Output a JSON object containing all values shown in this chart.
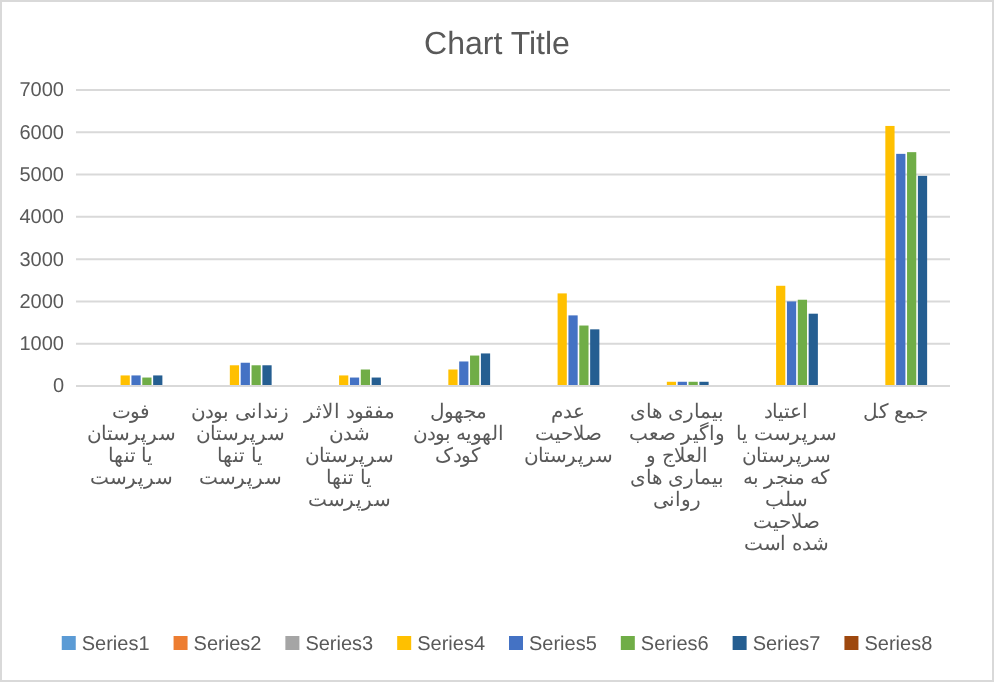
{
  "chart_data": {
    "type": "bar",
    "title": "Chart Title",
    "categories": [
      "فوت سرپرستان یا تنها سرپرست",
      "زندانی بودن سرپرستان یا تنها سرپرست",
      "مفقود الاثر شدن سرپرستان یا تنها سرپرست",
      "مجهول الهویه بودن کودک",
      "عدم صلاحیت سرپرستان",
      "بیماری های واگیر صعب العلاج و بیماری های روانی",
      "اعتیاد سرپرست یا سرپرستان که منجر به سلب صلاحیت شده است",
      "جمع کل"
    ],
    "series": [
      {
        "name": "Series1",
        "color": "#5b9bd5",
        "values": [
          null,
          null,
          null,
          null,
          null,
          null,
          null,
          null
        ]
      },
      {
        "name": "Series2",
        "color": "#ed7d31",
        "values": [
          null,
          null,
          null,
          null,
          null,
          null,
          null,
          null
        ]
      },
      {
        "name": "Series3",
        "color": "#a5a5a5",
        "values": [
          null,
          null,
          null,
          null,
          null,
          null,
          null,
          null
        ]
      },
      {
        "name": "Series4",
        "color": "#ffc000",
        "values": [
          250,
          490,
          250,
          390,
          2190,
          100,
          2370,
          6150
        ]
      },
      {
        "name": "Series5",
        "color": "#4472c4",
        "values": [
          250,
          550,
          200,
          580,
          1670,
          100,
          2000,
          5490
        ]
      },
      {
        "name": "Series6",
        "color": "#70ad47",
        "values": [
          200,
          490,
          390,
          720,
          1430,
          100,
          2040,
          5530
        ]
      },
      {
        "name": "Series7",
        "color": "#255e91",
        "values": [
          250,
          490,
          200,
          770,
          1340,
          100,
          1710,
          4970
        ]
      },
      {
        "name": "Series8",
        "color": "#9e480e",
        "values": [
          null,
          null,
          null,
          null,
          null,
          null,
          null,
          null
        ]
      }
    ],
    "ylim": [
      0,
      7000
    ],
    "yticks": [
      0,
      1000,
      2000,
      3000,
      4000,
      5000,
      6000,
      7000
    ],
    "grid": "y",
    "legend": "bottom"
  }
}
